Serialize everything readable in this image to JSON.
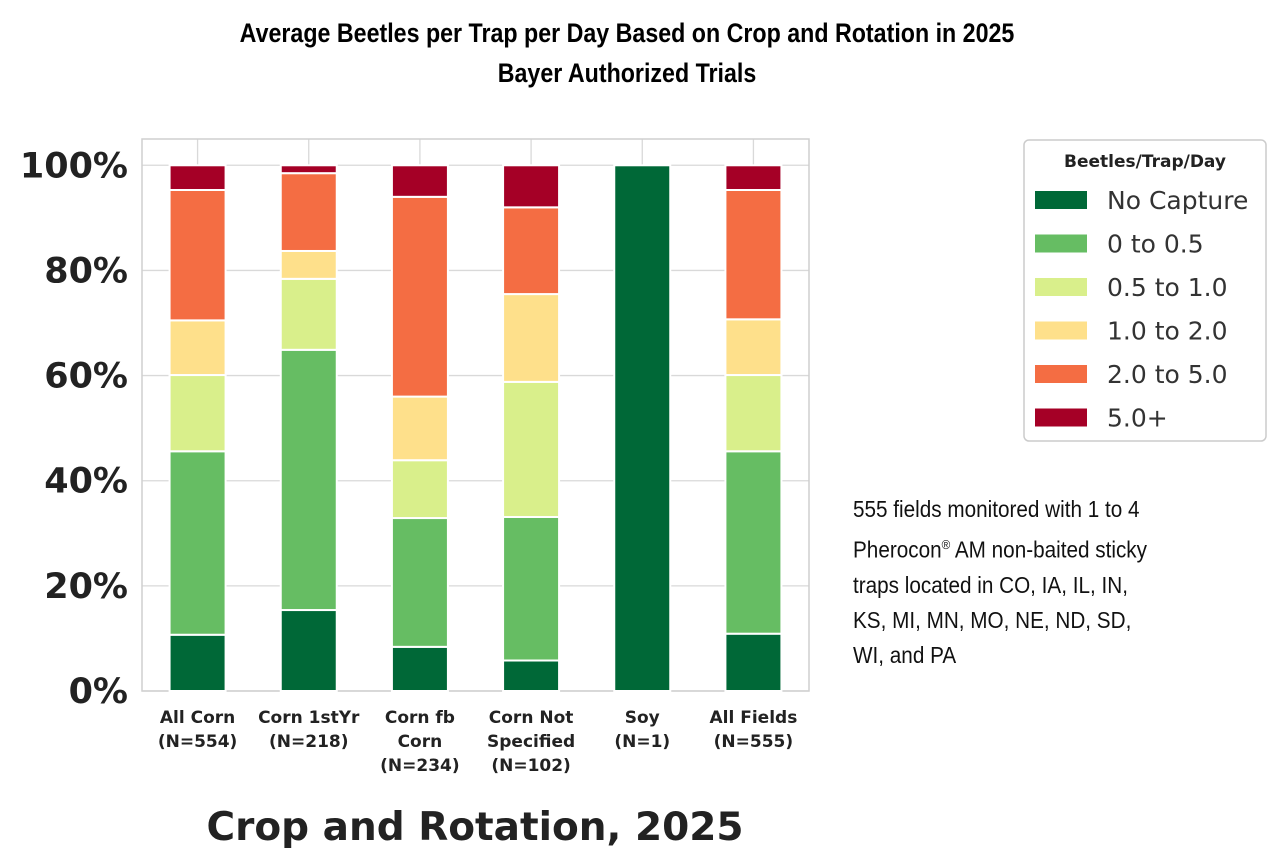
{
  "chart_data": {
    "type": "bar",
    "stacked": true,
    "normalized": true,
    "title": "Average Beetles per Trap per Day Based on Crop and Rotation in 2025",
    "subtitle": "Bayer Authorized Trials",
    "xlabel": "Crop and Rotation, 2025",
    "ylabel": "",
    "ylim": [
      0,
      105
    ],
    "yticks": [
      "0%",
      "20%",
      "40%",
      "60%",
      "80%",
      "100%"
    ],
    "grid": true,
    "categories": [
      [
        "All Corn",
        "(N=554)"
      ],
      [
        "Corn 1stYr",
        "(N=218)"
      ],
      [
        "Corn fb",
        "Corn",
        "(N=234)"
      ],
      [
        "Corn Not",
        "Specified",
        "(N=102)"
      ],
      [
        "Soy",
        "(N=1)"
      ],
      [
        "All Fields",
        "(N=555)"
      ]
    ],
    "legend": {
      "title": "Beetles/Trap/Day",
      "placement": "right"
    },
    "series": [
      {
        "name": "No Capture",
        "color": "#006837",
        "values": [
          10.7,
          15.4,
          8.4,
          5.8,
          100,
          10.9
        ]
      },
      {
        "name": "0 to 0.5",
        "color": "#66bd63",
        "values": [
          34.9,
          49.5,
          24.5,
          27.3,
          0,
          34.7
        ]
      },
      {
        "name": "0.5 to 1.0",
        "color": "#d9ef8b",
        "values": [
          14.5,
          13.5,
          11.0,
          25.7,
          0,
          14.5
        ]
      },
      {
        "name": "1.0 to 2.0",
        "color": "#fee08b",
        "values": [
          10.4,
          5.3,
          12.1,
          16.7,
          0,
          10.6
        ]
      },
      {
        "name": "2.0 to 5.0",
        "color": "#f46d43",
        "values": [
          24.8,
          14.8,
          38.0,
          16.5,
          0,
          24.6
        ]
      },
      {
        "name": "5.0+",
        "color": "#a50026",
        "values": [
          4.7,
          1.5,
          6.0,
          8.0,
          0,
          4.7
        ]
      }
    ]
  },
  "annotation": {
    "line1": "555 fields monitored with 1 to 4",
    "line2a": "Pherocon",
    "line2sup": "®",
    "line2b": " AM non-baited sticky",
    "line3": "traps located in CO, IA, IL, IN,",
    "line4": "KS, MI, MN, MO, NE, ND, SD,",
    "line5": "WI, and PA"
  }
}
